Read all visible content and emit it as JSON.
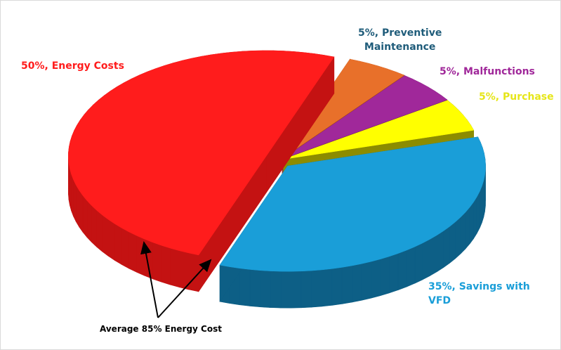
{
  "chart_data": {
    "type": "pie",
    "style": "3d-exploded",
    "slices": [
      {
        "label": "Energy Costs",
        "value": 50,
        "display": "50%, Energy Costs",
        "color": "#ff1c1c",
        "side": "#c41212",
        "label_color": "#ff1c1c"
      },
      {
        "label": "Preventive Maintenance",
        "value": 5,
        "display": "5%, Preventive Maintenance",
        "display_lines": [
          "5%, Preventive",
          "Maintenance"
        ],
        "color": "#e8702a",
        "side": "#a84c18",
        "label_color": "#1f5c7a"
      },
      {
        "label": "Malfunctions",
        "value": 5,
        "display": "5%, Malfunctions",
        "color": "#a0289a",
        "side": "#6a1466",
        "label_color": "#a0289a"
      },
      {
        "label": "Purchase",
        "value": 5,
        "display": "5%, Purchase",
        "color": "#ffff00",
        "side": "#8c8c00",
        "label_color": "#e6e619"
      },
      {
        "label": "Savings with VFD",
        "value": 35,
        "display": "35%, Savings with VFD",
        "display_lines": [
          "35%, Savings with",
          "VFD"
        ],
        "color": "#1a9ed8",
        "side": "#0d5f86",
        "label_color": "#1a9ed8"
      }
    ],
    "annotation": "Average 85% Energy Cost"
  }
}
